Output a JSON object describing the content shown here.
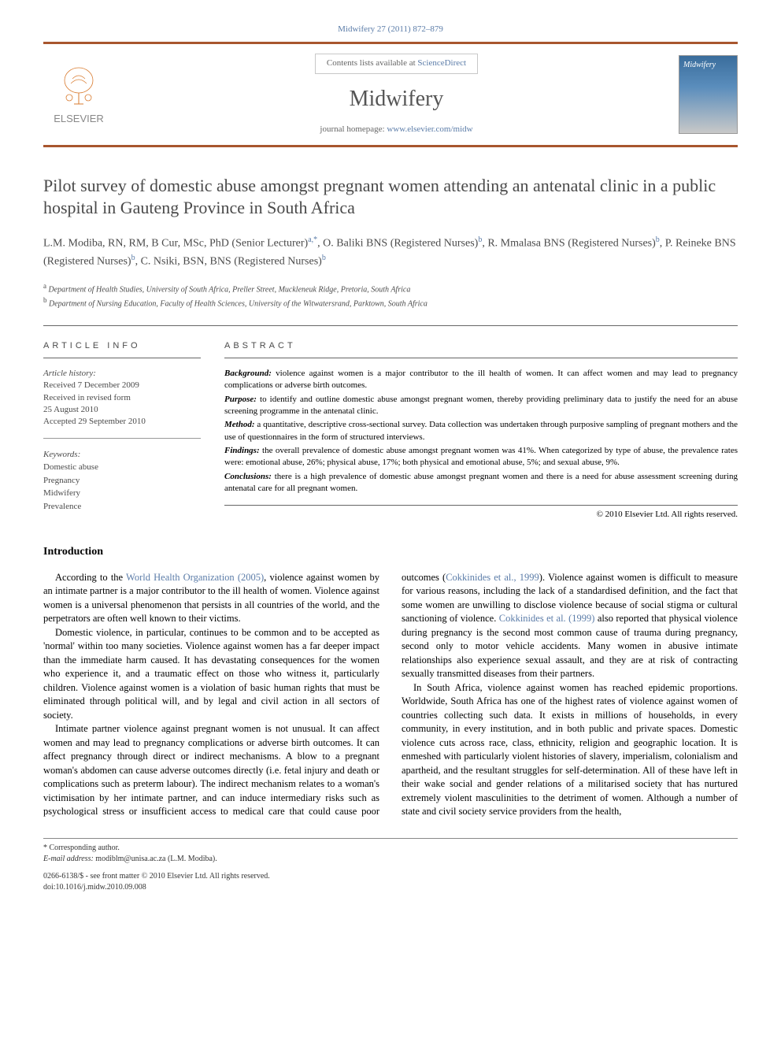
{
  "citation": "Midwifery 27 (2011) 872–879",
  "header": {
    "contents_prefix": "Contents lists available at ",
    "contents_link": "ScienceDirect",
    "journal_name": "Midwifery",
    "homepage_prefix": "journal homepage: ",
    "homepage_link": "www.elsevier.com/midw",
    "publisher": "ELSEVIER",
    "cover_label": "Midwifery"
  },
  "title": "Pilot survey of domestic abuse amongst pregnant women attending an antenatal clinic in a public hospital in Gauteng Province in South Africa",
  "authors_html": "L.M. Modiba, RN, RM, B Cur, MSc, PhD (Senior Lecturer)<sup>a,*</sup>, O. Baliki BNS (Registered Nurses)<sup>b</sup>, R. Mmalasa BNS (Registered Nurses)<sup>b</sup>, P. Reineke BNS (Registered Nurses)<sup>b</sup>, C. Nsiki, BSN, BNS (Registered Nurses)<sup>b</sup>",
  "affiliations": [
    {
      "sup": "a",
      "text": "Department of Health Studies, University of South Africa, Preller Street, Muckleneuk Ridge, Pretoria, South Africa"
    },
    {
      "sup": "b",
      "text": "Department of Nursing Education, Faculty of Health Sciences, University of the Witwatersrand, Parktown, South Africa"
    }
  ],
  "article_info": {
    "header": "ARTICLE INFO",
    "history_label": "Article history:",
    "history": [
      "Received 7 December 2009",
      "Received in revised form",
      "25 August 2010",
      "Accepted 29 September 2010"
    ],
    "keywords_label": "Keywords:",
    "keywords": [
      "Domestic abuse",
      "Pregnancy",
      "Midwifery",
      "Prevalence"
    ]
  },
  "abstract": {
    "header": "ABSTRACT",
    "sections": [
      {
        "heading": "Background:",
        "text": "violence against women is a major contributor to the ill health of women. It can affect women and may lead to pregnancy complications or adverse birth outcomes."
      },
      {
        "heading": "Purpose:",
        "text": "to identify and outline domestic abuse amongst pregnant women, thereby providing preliminary data to justify the need for an abuse screening programme in the antenatal clinic."
      },
      {
        "heading": "Method:",
        "text": "a quantitative, descriptive cross-sectional survey. Data collection was undertaken through purposive sampling of pregnant mothers and the use of questionnaires in the form of structured interviews."
      },
      {
        "heading": "Findings:",
        "text": "the overall prevalence of domestic abuse amongst pregnant women was 41%. When categorized by type of abuse, the prevalence rates were: emotional abuse, 26%; physical abuse, 17%; both physical and emotional abuse, 5%; and sexual abuse, 9%."
      },
      {
        "heading": "Conclusions:",
        "text": "there is a high prevalence of domestic abuse amongst pregnant women and there is a need for abuse assessment screening during antenatal care for all pregnant women."
      }
    ],
    "copyright": "© 2010 Elsevier Ltd. All rights reserved."
  },
  "introduction": {
    "title": "Introduction",
    "paragraphs": [
      "According to the <span class=\"cite-link\">World Health Organization (2005)</span>, violence against women by an intimate partner is a major contributor to the ill health of women. Violence against women is a universal phenomenon that persists in all countries of the world, and the perpetrators are often well known to their victims.",
      "Domestic violence, in particular, continues to be common and to be accepted as 'normal' within too many societies. Violence against women has a far deeper impact than the immediate harm caused. It has devastating consequences for the women who experience it, and a traumatic effect on those who witness it, particularly children. Violence against women is a violation of basic human rights that must be eliminated through political will, and by legal and civil action in all sectors of society.",
      "Intimate partner violence against pregnant women is not unusual. It can affect women and may lead to pregnancy complications or adverse birth outcomes. It can affect pregnancy through direct or indirect mechanisms. A blow to a pregnant woman's abdomen can cause adverse outcomes directly (i.e. fetal injury and death or complications such as preterm labour). The indirect mechanism relates to a woman's victimisation by her intimate partner, and can induce intermediary risks such as psychological stress or insufficient access to medical care that could cause poor outcomes (<span class=\"cite-link\">Cokkinides et al., 1999</span>). Violence against women is difficult to measure for various reasons, including the lack of a standardised definition, and the fact that some women are unwilling to disclose violence because of social stigma or cultural sanctioning of violence. <span class=\"cite-link\">Cokkinides et al. (1999)</span> also reported that physical violence during pregnancy is the second most common cause of trauma during pregnancy, second only to motor vehicle accidents. Many women in abusive intimate relationships also experience sexual assault, and they are at risk of contracting sexually transmitted diseases from their partners.",
      "In South Africa, violence against women has reached epidemic proportions. Worldwide, South Africa has one of the highest rates of violence against women of countries collecting such data. It exists in millions of households, in every community, in every institution, and in both public and private spaces. Domestic violence cuts across race, class, ethnicity, religion and geographic location. It is enmeshed with particularly violent histories of slavery, imperialism, colonialism and apartheid, and the resultant struggles for self-determination. All of these have left in their wake social and gender relations of a militarised society that has nurtured extremely violent masculinities to the detriment of women. Although a number of state and civil society service providers from the health,"
    ]
  },
  "footer": {
    "corresponding_label": "* Corresponding author.",
    "email_label": "E-mail address:",
    "email": "modiblm@unisa.ac.za (L.M. Modiba).",
    "issn_line": "0266-6138/$ - see front matter © 2010 Elsevier Ltd. All rights reserved.",
    "doi_line": "doi:10.1016/j.midw.2010.09.008"
  },
  "colors": {
    "brand_orange": "#a8562e",
    "link_blue": "#5b7ca8",
    "text_gray": "#4a4a4a"
  }
}
